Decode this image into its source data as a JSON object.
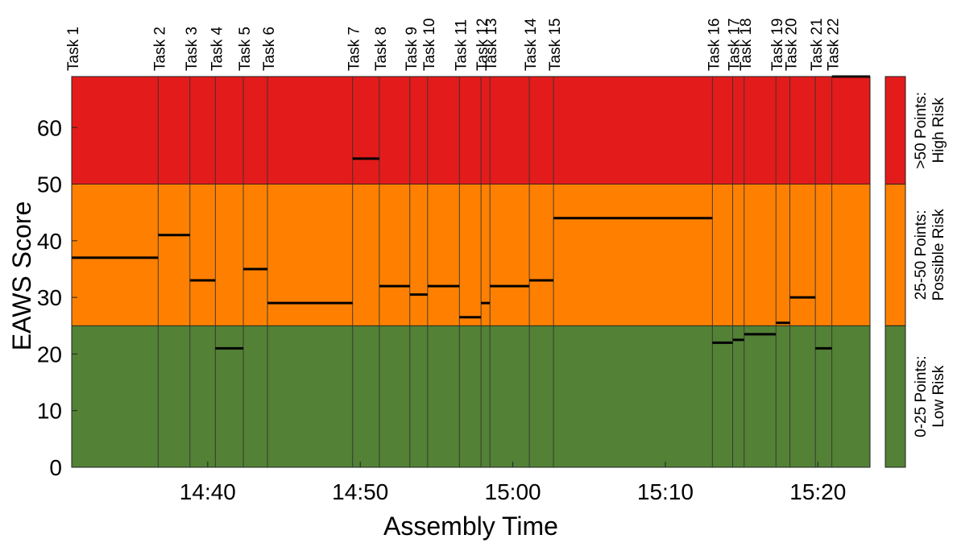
{
  "chart_data": {
    "type": "step",
    "xlabel": "Assembly Time",
    "ylabel": "EAWS Score",
    "xlim": [
      "14:31:05",
      "15:23:25"
    ],
    "ylim": [
      0,
      69
    ],
    "x_ticks": [
      "14:40",
      "14:50",
      "15:00",
      "15:10",
      "15:20"
    ],
    "y_ticks": [
      0,
      10,
      20,
      30,
      40,
      50,
      60
    ],
    "bands": [
      {
        "from": 0,
        "to": 25,
        "color": "#538135",
        "label_line1": "0-25 Points:",
        "label_line2": "Low Risk"
      },
      {
        "from": 25,
        "to": 50,
        "color": "#FF8000",
        "label_line1": "25-50 Points:",
        "label_line2": "Possible Risk"
      },
      {
        "from": 50,
        "to": 69,
        "color": "#E31B1B",
        "label_line1": ">50 Points:",
        "label_line2": "High Risk"
      }
    ],
    "tasks": [
      {
        "name": "Task 1",
        "start": "14:31:05",
        "end": "14:36:45",
        "score": 37
      },
      {
        "name": "Task 2",
        "start": "14:36:45",
        "end": "14:38:50",
        "score": 41
      },
      {
        "name": "Task 3",
        "start": "14:38:50",
        "end": "14:40:30",
        "score": 33
      },
      {
        "name": "Task 4",
        "start": "14:40:30",
        "end": "14:42:20",
        "score": 21
      },
      {
        "name": "Task 5",
        "start": "14:42:20",
        "end": "14:43:55",
        "score": 35
      },
      {
        "name": "Task 6",
        "start": "14:43:55",
        "end": "14:49:30",
        "score": 29
      },
      {
        "name": "Task 7",
        "start": "14:49:30",
        "end": "14:51:15",
        "score": 54.5
      },
      {
        "name": "Task 8",
        "start": "14:51:15",
        "end": "14:53:15",
        "score": 32
      },
      {
        "name": "Task 9",
        "start": "14:53:15",
        "end": "14:54:25",
        "score": 30.5
      },
      {
        "name": "Task 10",
        "start": "14:54:25",
        "end": "14:56:30",
        "score": 32
      },
      {
        "name": "Task 11",
        "start": "14:56:30",
        "end": "14:57:55",
        "score": 26.5
      },
      {
        "name": "Task 12",
        "start": "14:57:55",
        "end": "14:58:30",
        "score": 29
      },
      {
        "name": "Task 13",
        "start": "14:58:30",
        "end": "15:01:05",
        "score": 32
      },
      {
        "name": "Task 14",
        "start": "15:01:05",
        "end": "15:02:40",
        "score": 33
      },
      {
        "name": "Task 15",
        "start": "15:02:40",
        "end": "15:13:05",
        "score": 44
      },
      {
        "name": "Task 16",
        "start": "15:13:05",
        "end": "15:14:25",
        "score": 22
      },
      {
        "name": "Task 17",
        "start": "15:14:25",
        "end": "15:15:10",
        "score": 22.5
      },
      {
        "name": "Task 18",
        "start": "15:15:10",
        "end": "15:17:15",
        "score": 23.5
      },
      {
        "name": "Task 19",
        "start": "15:17:15",
        "end": "15:18:10",
        "score": 25.5
      },
      {
        "name": "Task 20",
        "start": "15:18:10",
        "end": "15:19:50",
        "score": 30
      },
      {
        "name": "Task 21",
        "start": "15:19:50",
        "end": "15:20:55",
        "score": 21
      },
      {
        "name": "Task 22",
        "start": "15:20:55",
        "end": "15:23:25",
        "score": 69
      }
    ]
  }
}
